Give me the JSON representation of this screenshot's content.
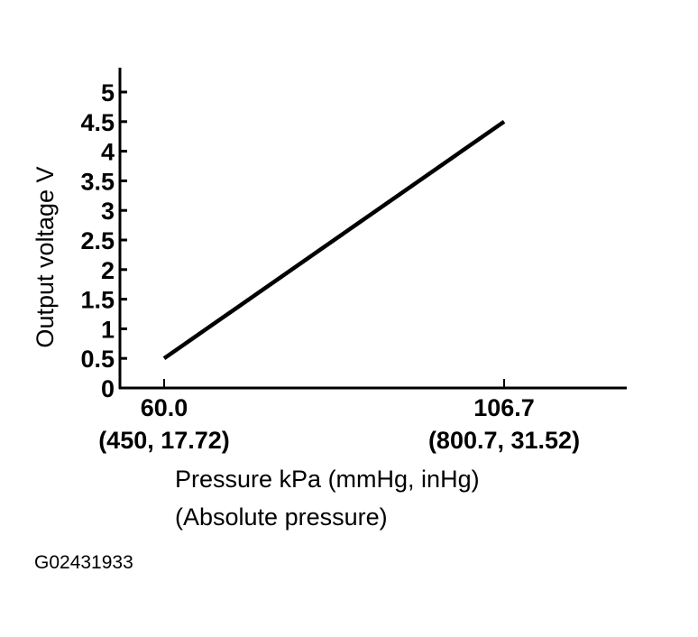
{
  "chart_data": {
    "type": "line",
    "title": "",
    "xlabel": "Pressure kPa (mmHg, inHg)",
    "xlabel_sub": "(Absolute pressure)",
    "ylabel": "Output voltage V",
    "ylim": [
      0,
      5.5
    ],
    "xlim": [
      50,
      123
    ],
    "grid": false,
    "y_ticks": [
      "0",
      "0.5",
      "1",
      "1.5",
      "2",
      "2.5",
      "3",
      "3.5",
      "4",
      "4.5",
      "5"
    ],
    "x_ticks": [
      {
        "value": 60.0,
        "label": "60.0",
        "sublabel": "(450, 17.72)"
      },
      {
        "value": 106.7,
        "label": "106.7",
        "sublabel": "(800.7, 31.52)"
      }
    ],
    "series": [
      {
        "x": [
          60.0,
          106.7
        ],
        "y": [
          0.5,
          4.5
        ],
        "color": "#000000"
      }
    ]
  },
  "figure_code": "G02431933"
}
